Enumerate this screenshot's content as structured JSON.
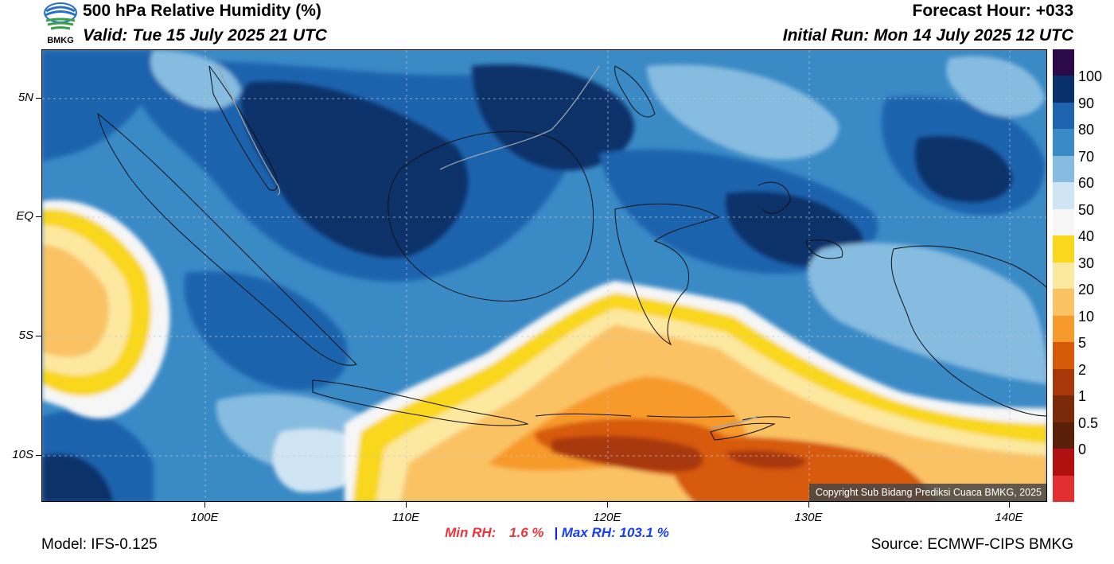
{
  "header": {
    "title": "500 hPa Relative Humidity (%)",
    "valid": "Valid: Tue 15 July 2025 21 UTC",
    "forecast_hour": "Forecast Hour: +033",
    "initial_run": "Initial Run: Mon 14 July 2025 12 UTC",
    "logo_text": "BMKG"
  },
  "map": {
    "lat_labels": [
      "5N",
      "EQ",
      "5S",
      "10S"
    ],
    "lon_labels": [
      "100E",
      "110E",
      "120E",
      "130E",
      "140E"
    ],
    "copyright": "Copyright Sub Bidang Prediksi Cuaca BMKG, 2025"
  },
  "colorbar": {
    "labels": [
      "100",
      "90",
      "80",
      "70",
      "60",
      "50",
      "40",
      "30",
      "20",
      "10",
      "5",
      "2",
      "1",
      "0.5",
      "0"
    ],
    "colors": [
      "#2c0a4a",
      "#08306b",
      "#1e63ae",
      "#3a8ac6",
      "#86bce0",
      "#d0e5f3",
      "#f6f6f6",
      "#f9d71c",
      "#fde8a0",
      "#fbc263",
      "#f79a2c",
      "#d75a0a",
      "#a8380a",
      "#7a2a08",
      "#5a1f08",
      "#b01010",
      "#e23030"
    ]
  },
  "stats": {
    "min_label": "Min RH:",
    "min_value": "1.6 %",
    "separator": "|",
    "max_label": "Max RH:",
    "max_value": "103.1 %"
  },
  "footer": {
    "model": "Model: IFS-0.125",
    "source": "Source: ECMWF-CIPS BMKG"
  }
}
